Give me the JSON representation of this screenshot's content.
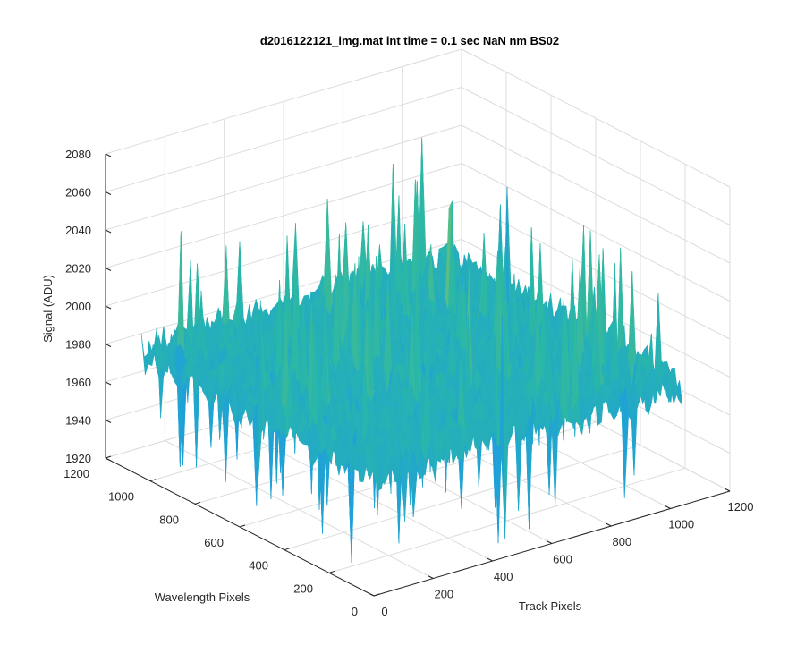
{
  "chart_data": {
    "type": "surface",
    "title": "d2016122121_img.mat int time = 0.1 sec  NaN nm BS02",
    "xlabel": "Track Pixels",
    "ylabel": "Wavelength Pixels",
    "zlabel": "Signal (ADU)",
    "xlim": [
      0,
      1200
    ],
    "ylim": [
      0,
      1200
    ],
    "zlim": [
      1920,
      2080
    ],
    "xticks": [
      0,
      200,
      400,
      600,
      800,
      1000,
      1200
    ],
    "yticks": [
      0,
      200,
      400,
      600,
      800,
      1000,
      1200
    ],
    "zticks": [
      1920,
      1940,
      1960,
      1980,
      2000,
      2020,
      2040,
      2060,
      2080
    ],
    "grid": true,
    "colormap": "parula",
    "surface_summary": {
      "x_extent": [
        0,
        1040
      ],
      "y_extent": [
        0,
        1040
      ],
      "mean_signal": 1985,
      "signal_range": [
        1925,
        2070
      ]
    },
    "colors": {
      "low": "#0d5bd6",
      "mid_low": "#1f9fdc",
      "mid": "#29b7a8",
      "mid_high": "#7ec36a",
      "high": "#d5c84a"
    }
  }
}
